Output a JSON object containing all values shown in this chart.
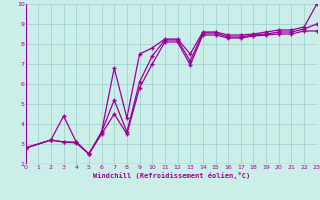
{
  "xlabel": "Windchill (Refroidissement éolien,°C)",
  "bg_color": "#cceee8",
  "grid_color": "#99cccc",
  "line_color": "#990099",
  "xmin": 0,
  "xmax": 23,
  "ymin": 2,
  "ymax": 10,
  "line1_x": [
    0,
    2,
    3,
    4,
    5,
    6,
    7,
    8,
    9,
    10,
    11,
    12,
    13,
    14,
    15,
    16,
    17,
    18,
    19,
    20,
    21,
    22,
    23
  ],
  "line1_y": [
    2.8,
    3.2,
    4.4,
    3.1,
    2.5,
    3.6,
    6.8,
    4.3,
    7.5,
    7.8,
    8.25,
    8.25,
    7.5,
    8.6,
    8.6,
    8.45,
    8.45,
    8.5,
    8.6,
    8.7,
    8.7,
    8.85,
    10.0
  ],
  "line2_x": [
    0,
    2,
    3,
    4,
    5,
    6,
    7,
    8,
    9,
    10,
    11,
    12,
    13,
    14,
    15,
    16,
    17,
    18,
    19,
    20,
    21,
    22,
    23
  ],
  "line2_y": [
    2.8,
    3.2,
    3.1,
    3.1,
    2.5,
    3.6,
    5.2,
    3.6,
    6.1,
    7.4,
    8.2,
    8.2,
    7.15,
    8.55,
    8.55,
    8.35,
    8.35,
    8.45,
    8.5,
    8.6,
    8.6,
    8.75,
    9.0
  ],
  "line3_x": [
    0,
    2,
    3,
    4,
    5,
    6,
    7,
    8,
    9,
    10,
    11,
    12,
    13,
    14,
    15,
    16,
    17,
    18,
    19,
    20,
    21,
    22,
    23
  ],
  "line3_y": [
    2.8,
    3.2,
    3.1,
    3.05,
    2.5,
    3.5,
    4.5,
    3.5,
    5.8,
    7.0,
    8.1,
    8.1,
    6.95,
    8.45,
    8.45,
    8.3,
    8.3,
    8.4,
    8.45,
    8.5,
    8.5,
    8.65,
    8.65
  ]
}
